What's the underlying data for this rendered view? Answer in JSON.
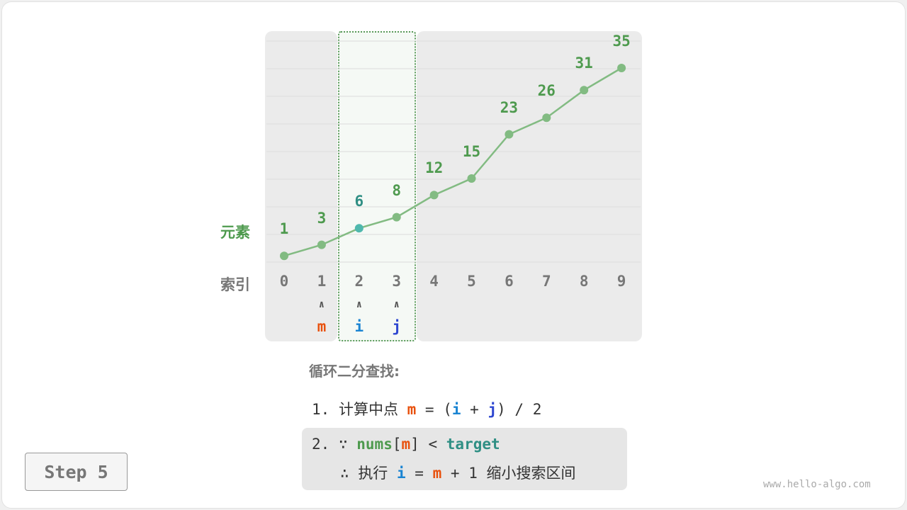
{
  "colors": {
    "green": "#4e9a4e",
    "line": "#82bb82",
    "teal": "#2f8f84",
    "mid": "#4fb8ad",
    "gray": "#777777",
    "orange": "#e8500c",
    "blue": "#1a84d2",
    "indigo": "#2e47d0"
  },
  "diagram": {
    "values": [
      1,
      3,
      6,
      8,
      12,
      15,
      23,
      26,
      31,
      35
    ],
    "indices": [
      "0",
      "1",
      "2",
      "3",
      "4",
      "5",
      "6",
      "7",
      "8",
      "9"
    ],
    "highlight_index": 2,
    "window": [
      2,
      3
    ],
    "row_value_label": "元素",
    "row_index_label": "索引",
    "pointers": [
      {
        "index": 1,
        "label": "m",
        "arrow": "∧"
      },
      {
        "index": 2,
        "label": "i",
        "arrow": "∧"
      },
      {
        "index": 3,
        "label": "j",
        "arrow": "∧"
      }
    ]
  },
  "explain": {
    "title": "循环二分查找:",
    "step1": {
      "num": "1.",
      "text": "计算中点",
      "m": "m",
      "eq": "= (",
      "i": "i",
      "plus": "+",
      "j": "j",
      "rest": ") / 2"
    },
    "step2": {
      "num": "2.",
      "because": "∵",
      "nums": "nums",
      "lb": "[",
      "m": "m",
      "rb": "]",
      "lt": "<",
      "target": "target"
    },
    "step3": {
      "therefore": "∴",
      "text": "执行",
      "i": "i",
      "eq": "=",
      "m": "m",
      "rest": "+ 1",
      "tail": "缩小搜索区间"
    }
  },
  "step_label": "Step 5",
  "watermark": "www.hello-algo.com"
}
